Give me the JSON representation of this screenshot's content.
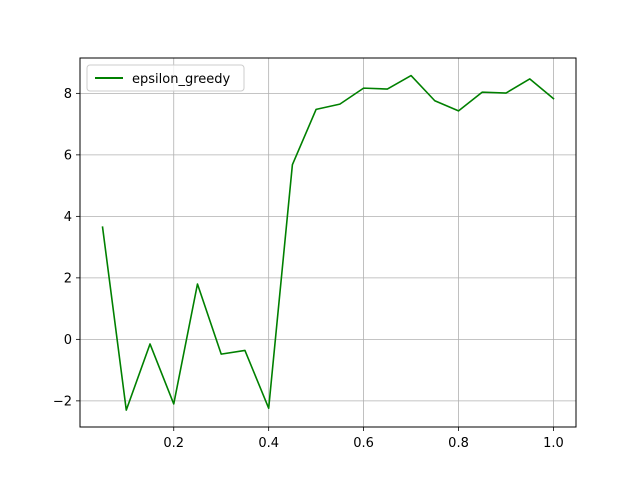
{
  "chart_data": {
    "type": "line",
    "title": "",
    "xlabel": "",
    "ylabel": "",
    "xlim": [
      0.0025,
      1.0475
    ],
    "ylim": [
      -2.85,
      9.15
    ],
    "x_ticks": [
      0.2,
      0.4,
      0.6,
      0.8,
      1.0
    ],
    "x_tick_labels": [
      "0.2",
      "0.4",
      "0.6",
      "0.8",
      "1.0"
    ],
    "y_ticks": [
      -2,
      0,
      2,
      4,
      6,
      8
    ],
    "y_tick_labels": [
      "−2",
      "0",
      "2",
      "4",
      "6",
      "8"
    ],
    "grid": true,
    "legend_position": "upper-left",
    "series": [
      {
        "name": "epsilon_greedy",
        "color": "#008000",
        "x": [
          0.05,
          0.1,
          0.15,
          0.2,
          0.25,
          0.3,
          0.35,
          0.4,
          0.45,
          0.5,
          0.55,
          0.6,
          0.65,
          0.7,
          0.75,
          0.8,
          0.85,
          0.9,
          0.95,
          1.0
        ],
        "y": [
          3.65,
          -2.3,
          -0.15,
          -2.1,
          1.8,
          -0.48,
          -0.36,
          -2.24,
          5.68,
          7.48,
          7.65,
          8.17,
          8.14,
          8.58,
          7.76,
          7.43,
          8.04,
          8.01,
          8.47,
          7.83
        ]
      }
    ]
  }
}
